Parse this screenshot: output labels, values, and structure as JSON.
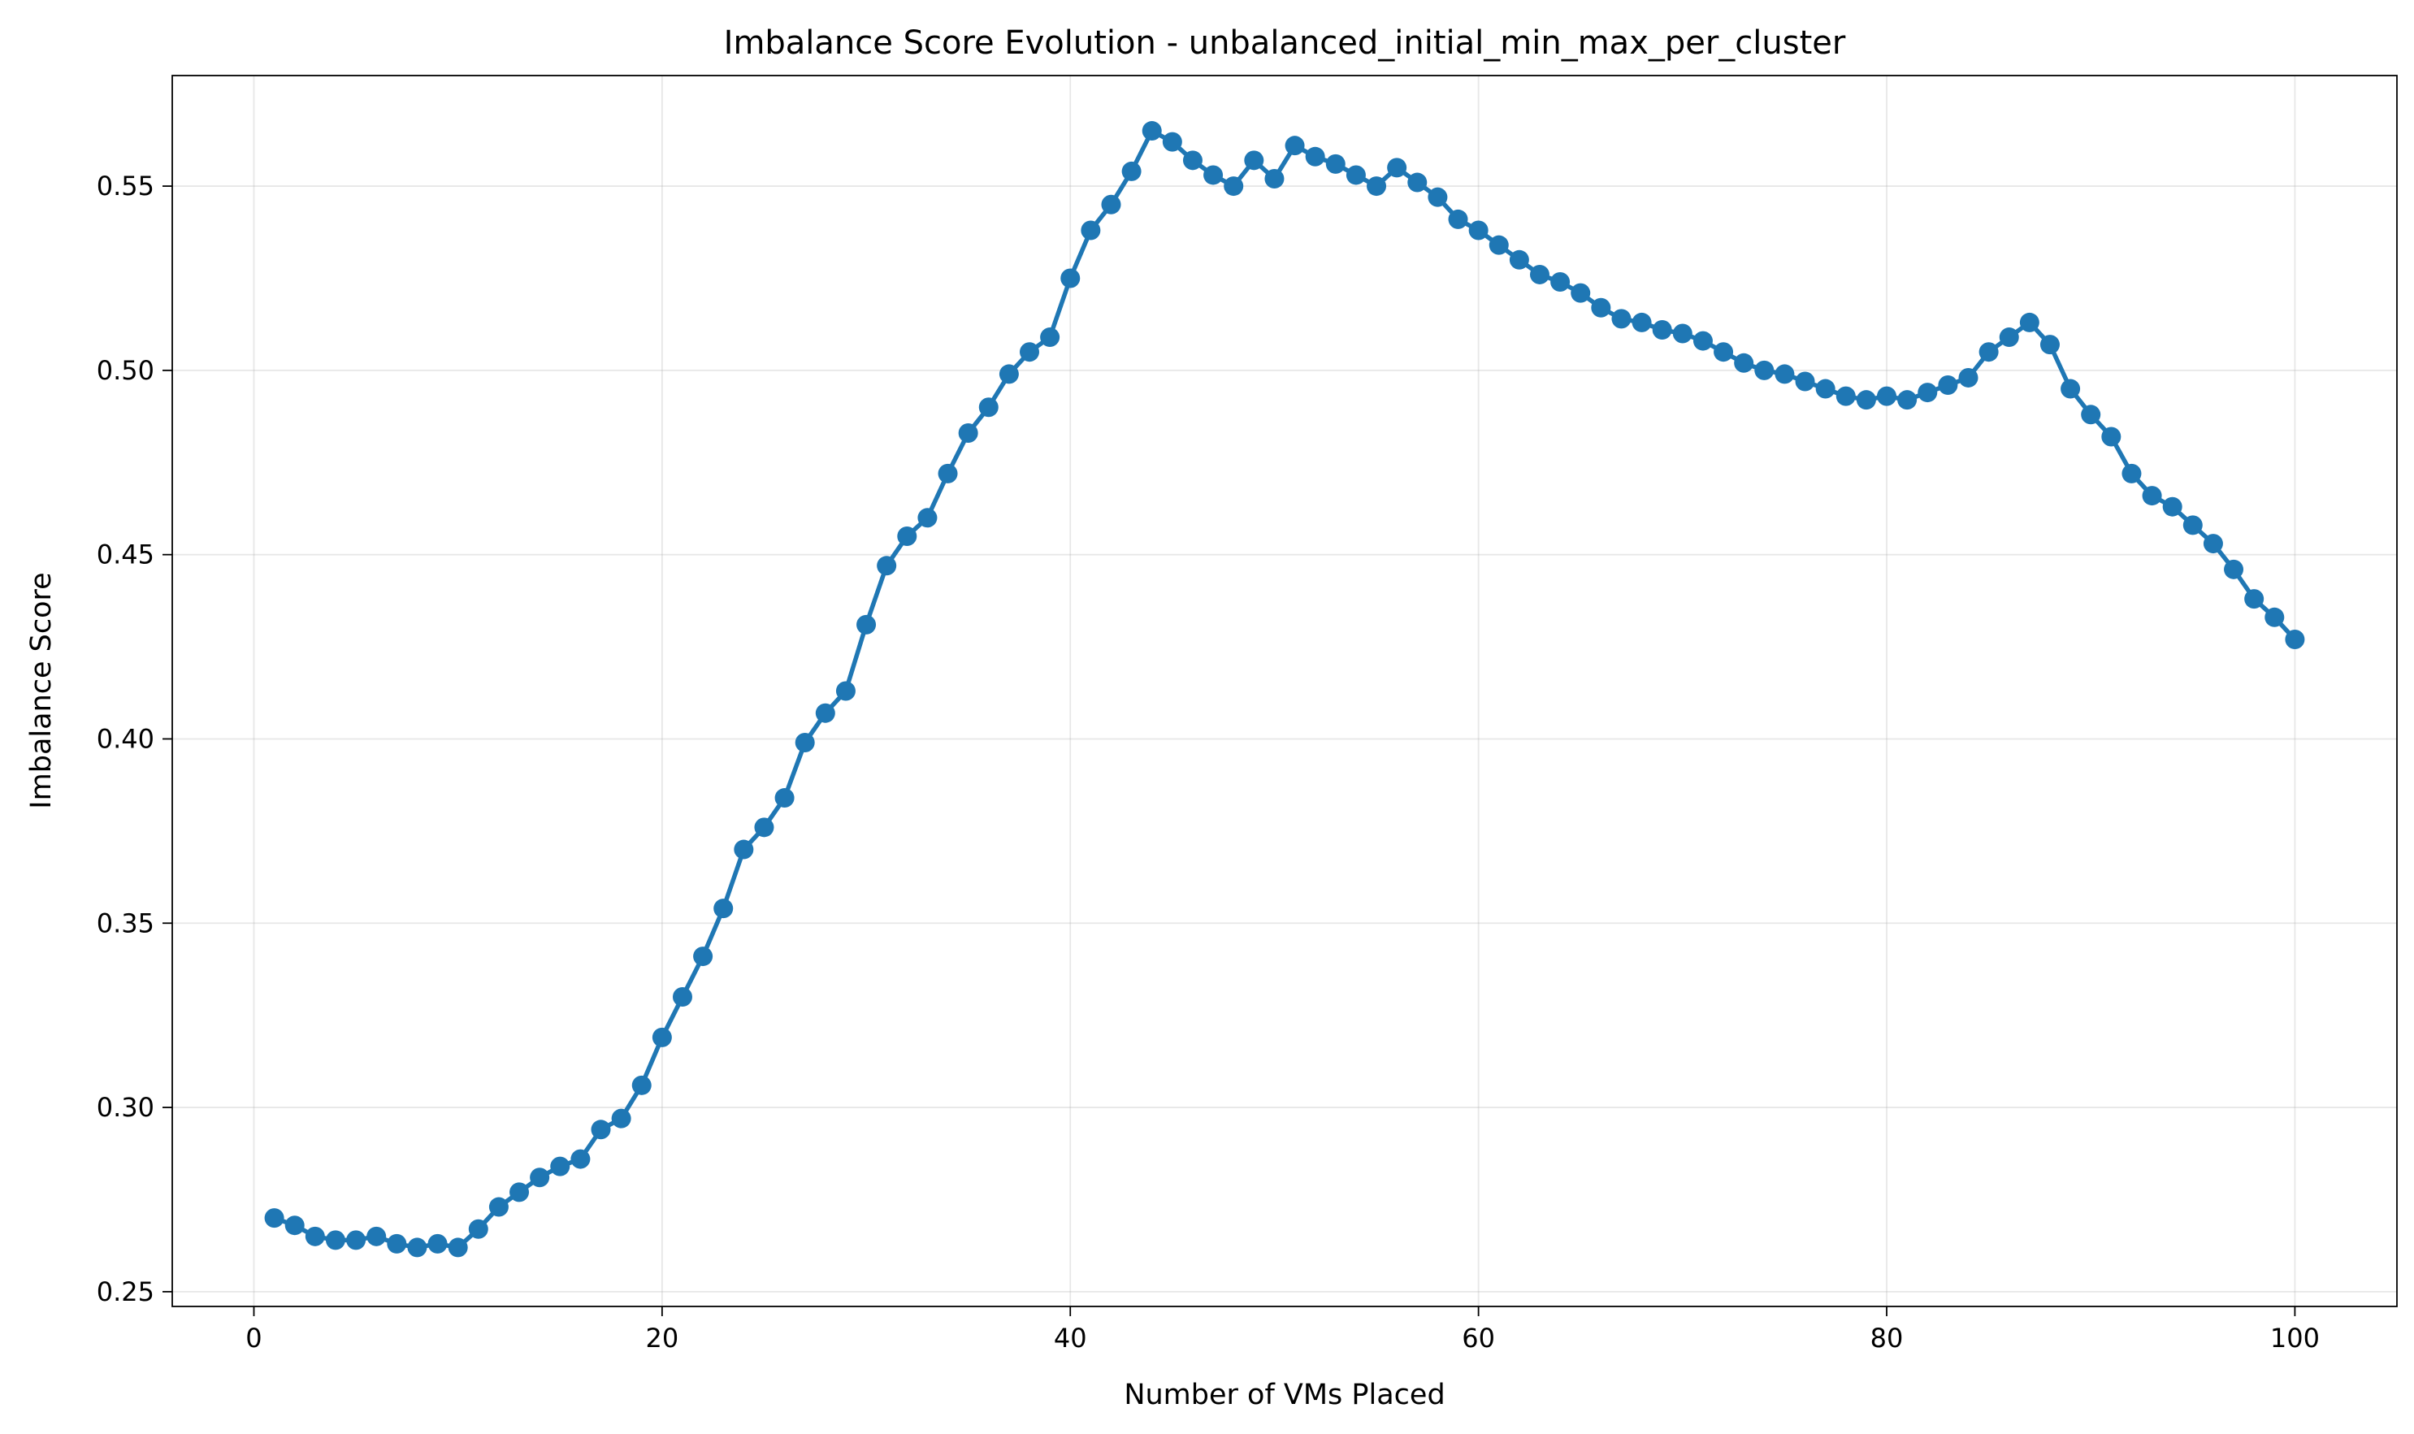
{
  "colors": {
    "series": "#1f77b4",
    "background": "#ffffff",
    "grid": "#b0b0b0"
  },
  "chart_data": {
    "type": "line",
    "title": "Imbalance Score Evolution - unbalanced_initial_min_max_per_cluster",
    "xlabel": "Number of VMs Placed",
    "ylabel": "Imbalance Score",
    "xlim": [
      -4,
      105
    ],
    "ylim": [
      0.246,
      0.58
    ],
    "xticks": [
      0,
      20,
      40,
      60,
      80,
      100
    ],
    "yticks": [
      0.25,
      0.3,
      0.35,
      0.4,
      0.45,
      0.5,
      0.55
    ],
    "xtick_labels": [
      "0",
      "20",
      "40",
      "60",
      "80",
      "100"
    ],
    "ytick_labels": [
      "0.25",
      "0.30",
      "0.35",
      "0.40",
      "0.45",
      "0.50",
      "0.55"
    ],
    "grid": true,
    "marker": "circle",
    "x": [
      1,
      2,
      3,
      4,
      5,
      6,
      7,
      8,
      9,
      10,
      11,
      12,
      13,
      14,
      15,
      16,
      17,
      18,
      19,
      20,
      21,
      22,
      23,
      24,
      25,
      26,
      27,
      28,
      29,
      30,
      31,
      32,
      33,
      34,
      35,
      36,
      37,
      38,
      39,
      40,
      41,
      42,
      43,
      44,
      45,
      46,
      47,
      48,
      49,
      50,
      51,
      52,
      53,
      54,
      55,
      56,
      57,
      58,
      59,
      60,
      61,
      62,
      63,
      64,
      65,
      66,
      67,
      68,
      69,
      70,
      71,
      72,
      73,
      74,
      75,
      76,
      77,
      78,
      79,
      80,
      81,
      82,
      83,
      84,
      85,
      86,
      87,
      88,
      89,
      90,
      91,
      92,
      93,
      94,
      95,
      96,
      97,
      98,
      99,
      100
    ],
    "values": [
      0.27,
      0.268,
      0.265,
      0.264,
      0.264,
      0.265,
      0.263,
      0.262,
      0.263,
      0.262,
      0.267,
      0.273,
      0.277,
      0.281,
      0.284,
      0.286,
      0.294,
      0.297,
      0.306,
      0.319,
      0.33,
      0.341,
      0.354,
      0.37,
      0.376,
      0.384,
      0.399,
      0.407,
      0.413,
      0.431,
      0.447,
      0.455,
      0.46,
      0.472,
      0.483,
      0.49,
      0.499,
      0.505,
      0.509,
      0.525,
      0.538,
      0.545,
      0.554,
      0.565,
      0.562,
      0.557,
      0.553,
      0.55,
      0.557,
      0.552,
      0.561,
      0.558,
      0.556,
      0.553,
      0.55,
      0.555,
      0.551,
      0.547,
      0.541,
      0.538,
      0.534,
      0.53,
      0.526,
      0.524,
      0.521,
      0.517,
      0.514,
      0.513,
      0.511,
      0.51,
      0.508,
      0.505,
      0.502,
      0.5,
      0.499,
      0.497,
      0.495,
      0.493,
      0.492,
      0.493,
      0.492,
      0.494,
      0.496,
      0.498,
      0.505,
      0.509,
      0.513,
      0.507,
      0.495,
      0.488,
      0.482,
      0.472,
      0.466,
      0.463,
      0.458,
      0.453,
      0.446,
      0.438,
      0.433,
      0.427
    ]
  }
}
